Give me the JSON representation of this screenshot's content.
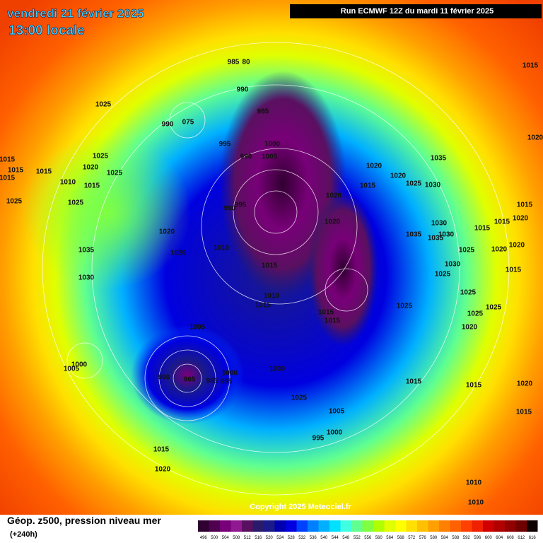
{
  "header": {
    "title": "vendredi 21 février 2025",
    "subtitle": "13:00 locale",
    "run": "Run ECMWF 12Z du mardi 11 février 2025"
  },
  "copyright": "Copyright 2025 Meteociel.fr",
  "isobar_labels": [
    "985",
    "80",
    "1015",
    "990",
    "1025",
    "985",
    "990",
    "075",
    "995",
    "1000",
    "1020",
    "990",
    "1005",
    "1035",
    "1015",
    "1025",
    "1015",
    "1020",
    "1015",
    "1025",
    "1020",
    "1020",
    "1015",
    "1010",
    "1015",
    "1015",
    "1025",
    "1030",
    "1020",
    "1025",
    "1025",
    "995",
    "990",
    "1015",
    "1030",
    "1020",
    "1015",
    "1020",
    "1015",
    "1020",
    "1030",
    "1035",
    "1035",
    "1020",
    "1010",
    "1020",
    "1035",
    "1025",
    "1020",
    "1015",
    "1030",
    "1030",
    "1025",
    "1015",
    "1025",
    "1010",
    "1015",
    "1025",
    "1025",
    "1015",
    "1015",
    "1025",
    "1020",
    "1005",
    "1030",
    "1000",
    "1005",
    "1000",
    "990",
    "965",
    "995",
    "985",
    "1015",
    "1020",
    "1015",
    "1025",
    "1005",
    "1015",
    "1000",
    "995",
    "1015",
    "1020",
    "1010",
    "1010"
  ],
  "legend": {
    "label": "Géop. z500, pression niveau mer",
    "sublabel": "(+240h)",
    "ticks": [
      496,
      500,
      504,
      508,
      512,
      516,
      520,
      524,
      528,
      532,
      536,
      540,
      544,
      548,
      552,
      556,
      560,
      564,
      568,
      572,
      576,
      580,
      584,
      588,
      592,
      596,
      600,
      604,
      608,
      612,
      616
    ],
    "colors": [
      "#300030",
      "#500050",
      "#780078",
      "#901890",
      "#5a1060",
      "#2a1a6a",
      "#1a1a8a",
      "#0000b0",
      "#0000e0",
      "#0040ff",
      "#0080ff",
      "#00b0ff",
      "#00e0ff",
      "#40ffe0",
      "#60ff90",
      "#80ff40",
      "#b0ff00",
      "#e0ff00",
      "#ffff00",
      "#ffe000",
      "#ffc000",
      "#ffa000",
      "#ff8000",
      "#ff6000",
      "#ff4000",
      "#f02000",
      "#d00000",
      "#b00000",
      "#900000",
      "#700000",
      "#100000"
    ]
  }
}
